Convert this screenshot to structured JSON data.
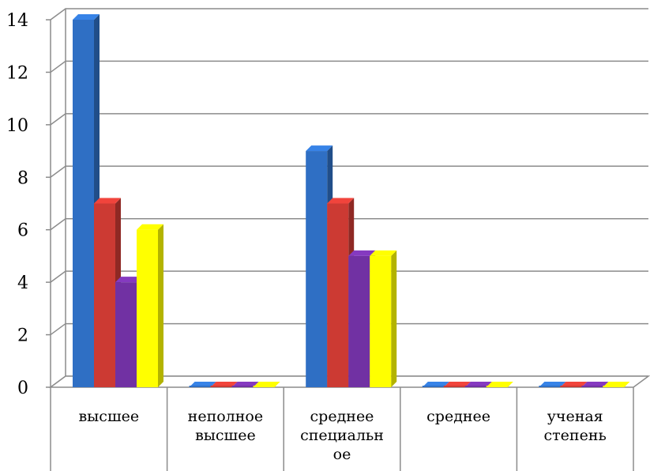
{
  "chart_data": {
    "type": "bar",
    "categories": [
      "высшее",
      "неполное\nвысшее",
      "среднее\nспециальн\nое",
      "среднее",
      "ученая\nстепень"
    ],
    "series": [
      {
        "values": [
          14,
          0,
          9,
          0,
          0
        ],
        "color": "#2f6fc4"
      },
      {
        "values": [
          7,
          0,
          7,
          0,
          0
        ],
        "color": "#cc3a33"
      },
      {
        "values": [
          4,
          0,
          5,
          0,
          0
        ],
        "color": "#7131a3"
      },
      {
        "values": [
          6,
          0,
          5,
          0,
          0
        ],
        "color": "#ffff00"
      }
    ],
    "ylim": [
      0,
      14
    ],
    "yticks": [
      0,
      2,
      4,
      6,
      8,
      10,
      12,
      14
    ],
    "grid": true,
    "legend": "none"
  }
}
